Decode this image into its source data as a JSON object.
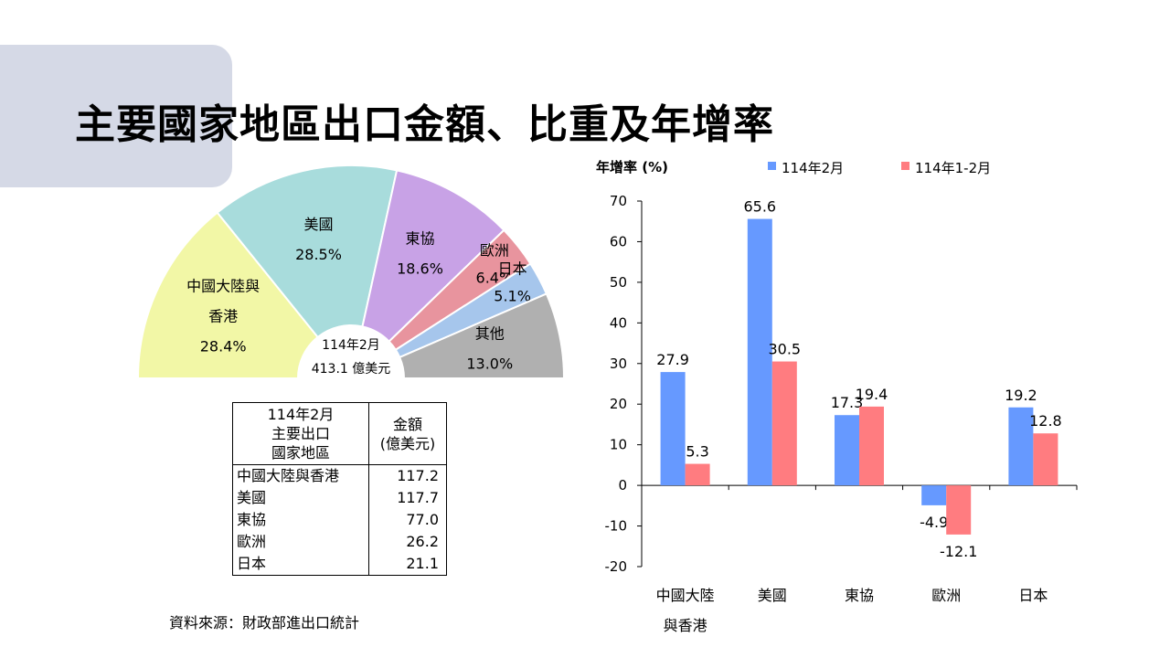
{
  "slide": {
    "title": "主要國家地區出口金額、比重及年增率",
    "source": "資料來源：財政部進出口統計"
  },
  "table": {
    "header_col1": [
      "114年2月",
      "主要出口",
      "國家地區"
    ],
    "header_col2": [
      "金額",
      "(億美元)"
    ],
    "rows": [
      {
        "region": "中國大陸與香港",
        "amount": "117.2"
      },
      {
        "region": "美國",
        "amount": "117.7"
      },
      {
        "region": "東協",
        "amount": "77.0"
      },
      {
        "region": "歐洲",
        "amount": "26.2"
      },
      {
        "region": "日本",
        "amount": "21.1"
      }
    ]
  },
  "chart_data": [
    {
      "type": "pie",
      "style": "half-donut",
      "center_label": [
        "114年2月",
        "413.1  億美元"
      ],
      "slices": [
        {
          "label": "中國大陸與香港",
          "label_lines": [
            "中國大陸與",
            "香港"
          ],
          "value": 28.4,
          "value_label": "28.4%",
          "color": "#f2f7a6"
        },
        {
          "label": "美國",
          "label_lines": [
            "美國"
          ],
          "value": 28.5,
          "value_label": "28.5%",
          "color": "#a8dcdc"
        },
        {
          "label": "東協",
          "label_lines": [
            "東協"
          ],
          "value": 18.6,
          "value_label": "18.6%",
          "color": "#c8a2e6"
        },
        {
          "label": "歐洲",
          "label_lines": [
            "歐洲"
          ],
          "value": 6.4,
          "value_label": "6.4%",
          "color": "#e8949e"
        },
        {
          "label": "日本",
          "label_lines": [
            "日本"
          ],
          "value": 5.1,
          "value_label": "5.1%",
          "color": "#a6c6ec"
        },
        {
          "label": "其他",
          "label_lines": [
            "其他"
          ],
          "value": 13.0,
          "value_label": "13.0%",
          "color": "#b0b0b0"
        }
      ]
    },
    {
      "type": "bar",
      "ylabel": "年增率 (%)",
      "ylim": [
        -20,
        70
      ],
      "yticks": [
        70,
        60,
        50,
        40,
        30,
        20,
        10,
        0,
        -10,
        -20
      ],
      "categories": [
        "中國大陸與香港",
        "美國",
        "東協",
        "歐洲",
        "日本"
      ],
      "category_label_lines": [
        [
          "中國大陸",
          "與香港"
        ],
        [
          "美國"
        ],
        [
          "東協"
        ],
        [
          "歐洲"
        ],
        [
          "日本"
        ]
      ],
      "legend_position": "top",
      "series": [
        {
          "name": "114年2月",
          "color": "#6699ff",
          "values": [
            27.9,
            65.6,
            17.3,
            -4.9,
            19.2
          ],
          "labels": [
            "27.9",
            "65.6",
            "17.3",
            "-4.9",
            "19.2"
          ]
        },
        {
          "name": "114年1-2月",
          "color": "#ff7c80",
          "values": [
            5.3,
            30.5,
            19.4,
            -12.1,
            12.8
          ],
          "labels": [
            "5.3",
            "30.5",
            "19.4",
            "-12.1",
            "12.8"
          ]
        }
      ]
    }
  ]
}
